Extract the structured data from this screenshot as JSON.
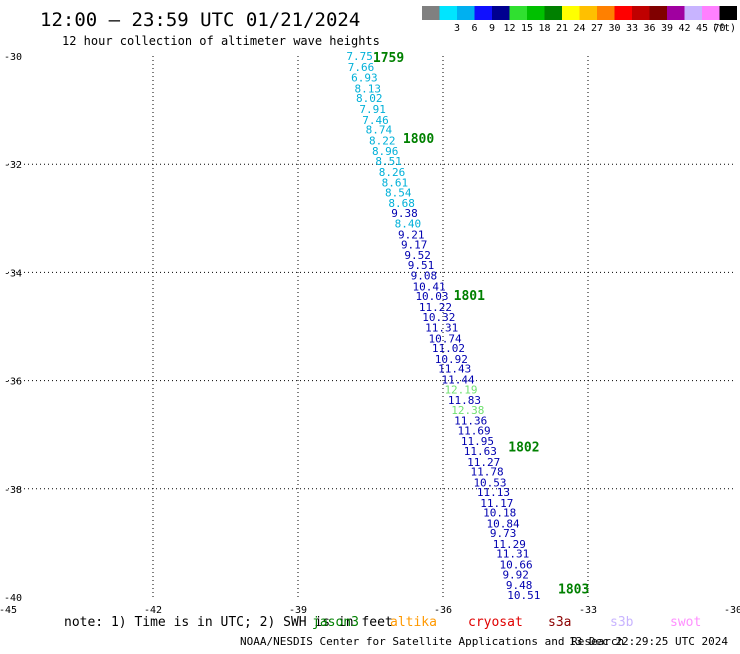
{
  "header": {
    "title": "12:00 – 23:59 UTC 01/21/2024",
    "subtitle": "12 hour collection of altimeter wave heights"
  },
  "legend": {
    "unit": "(ft)",
    "swatches": [
      {
        "color": "#808080",
        "label": ""
      },
      {
        "color": "#00e5ff",
        "label": "3"
      },
      {
        "color": "#00b0f0",
        "label": "6"
      },
      {
        "color": "#1010ff",
        "label": "9"
      },
      {
        "color": "#000090",
        "label": "12"
      },
      {
        "color": "#30e030",
        "label": "15"
      },
      {
        "color": "#00c000",
        "label": "18"
      },
      {
        "color": "#008000",
        "label": "21"
      },
      {
        "color": "#ffff00",
        "label": "24"
      },
      {
        "color": "#ffc000",
        "label": "27"
      },
      {
        "color": "#ff8000",
        "label": "30"
      },
      {
        "color": "#ff0000",
        "label": "33"
      },
      {
        "color": "#c00000",
        "label": "36"
      },
      {
        "color": "#800000",
        "label": "39"
      },
      {
        "color": "#a000a0",
        "label": "42"
      },
      {
        "color": "#c8b4ff",
        "label": "45"
      },
      {
        "color": "#ff80ff",
        "label": "70"
      },
      {
        "color": "#000000",
        "label": ""
      }
    ]
  },
  "map": {
    "lon_range": [
      -45,
      -30
    ],
    "lat_range": [
      -40,
      -30
    ],
    "lon_ticks": [
      {
        "value": -45,
        "label": "-45"
      },
      {
        "value": -42,
        "label": "-42"
      },
      {
        "value": -39,
        "label": "-39"
      },
      {
        "value": -36,
        "label": "-36"
      },
      {
        "value": -33,
        "label": "-33"
      },
      {
        "value": -30,
        "label": "-30"
      }
    ],
    "lat_ticks": [
      {
        "value": -30,
        "label": "-30"
      },
      {
        "value": -32,
        "label": "-32"
      },
      {
        "value": -34,
        "label": "-34"
      },
      {
        "value": -36,
        "label": "-36"
      },
      {
        "value": -38,
        "label": "-38"
      },
      {
        "value": -40,
        "label": "-40"
      }
    ],
    "colors": {
      "cyan": "#00b0d8",
      "blue": "#0000b0",
      "light_green": "#70e070",
      "time": "#008000"
    },
    "track": [
      {
        "lon": -38.0,
        "lat": -30.0,
        "v": "7.75",
        "c": "cyan"
      },
      {
        "lon": -37.97,
        "lat": -30.2,
        "v": "7.66",
        "c": "cyan"
      },
      {
        "lon": -37.9,
        "lat": -30.4,
        "v": "6.93",
        "c": "cyan"
      },
      {
        "lon": -37.83,
        "lat": -30.6,
        "v": "8.13",
        "c": "cyan"
      },
      {
        "lon": -37.8,
        "lat": -30.78,
        "v": "8.02",
        "c": "cyan"
      },
      {
        "lon": -37.73,
        "lat": -30.98,
        "v": "7.91",
        "c": "cyan"
      },
      {
        "lon": -37.67,
        "lat": -31.18,
        "v": "7.46",
        "c": "cyan"
      },
      {
        "lon": -37.6,
        "lat": -31.36,
        "v": "8.74",
        "c": "cyan"
      },
      {
        "lon": -37.53,
        "lat": -31.56,
        "v": "8.22",
        "c": "cyan"
      },
      {
        "lon": -37.47,
        "lat": -31.76,
        "v": "8.96",
        "c": "cyan"
      },
      {
        "lon": -37.4,
        "lat": -31.94,
        "v": "8.51",
        "c": "cyan"
      },
      {
        "lon": -37.33,
        "lat": -32.14,
        "v": "8.26",
        "c": "cyan"
      },
      {
        "lon": -37.27,
        "lat": -32.34,
        "v": "8.61",
        "c": "cyan"
      },
      {
        "lon": -37.2,
        "lat": -32.52,
        "v": "8.54",
        "c": "cyan"
      },
      {
        "lon": -37.13,
        "lat": -32.72,
        "v": "8.68",
        "c": "cyan"
      },
      {
        "lon": -37.07,
        "lat": -32.9,
        "v": "9.38",
        "c": "blue"
      },
      {
        "lon": -37.0,
        "lat": -33.1,
        "v": "8.40",
        "c": "cyan"
      },
      {
        "lon": -36.93,
        "lat": -33.3,
        "v": "9.21",
        "c": "blue"
      },
      {
        "lon": -36.87,
        "lat": -33.48,
        "v": "9.17",
        "c": "blue"
      },
      {
        "lon": -36.8,
        "lat": -33.68,
        "v": "9.52",
        "c": "blue"
      },
      {
        "lon": -36.73,
        "lat": -33.86,
        "v": "9.51",
        "c": "blue"
      },
      {
        "lon": -36.67,
        "lat": -34.06,
        "v": "9.08",
        "c": "blue"
      },
      {
        "lon": -36.63,
        "lat": -34.26,
        "v": "10.41",
        "c": "blue"
      },
      {
        "lon": -36.57,
        "lat": -34.44,
        "v": "10.03",
        "c": "blue"
      },
      {
        "lon": -36.5,
        "lat": -34.64,
        "v": "11.22",
        "c": "blue"
      },
      {
        "lon": -36.43,
        "lat": -34.82,
        "v": "10.32",
        "c": "blue"
      },
      {
        "lon": -36.37,
        "lat": -35.02,
        "v": "11.31",
        "c": "blue"
      },
      {
        "lon": -36.3,
        "lat": -35.22,
        "v": "10.74",
        "c": "blue"
      },
      {
        "lon": -36.23,
        "lat": -35.4,
        "v": "11.02",
        "c": "blue"
      },
      {
        "lon": -36.17,
        "lat": -35.6,
        "v": "10.92",
        "c": "blue"
      },
      {
        "lon": -36.1,
        "lat": -35.78,
        "v": "11.43",
        "c": "blue"
      },
      {
        "lon": -36.03,
        "lat": -35.98,
        "v": "11.44",
        "c": "blue"
      },
      {
        "lon": -35.97,
        "lat": -36.16,
        "v": "12.19",
        "c": "light_green"
      },
      {
        "lon": -35.9,
        "lat": -36.36,
        "v": "11.83",
        "c": "blue"
      },
      {
        "lon": -35.83,
        "lat": -36.54,
        "v": "12.38",
        "c": "light_green"
      },
      {
        "lon": -35.77,
        "lat": -36.74,
        "v": "11.36",
        "c": "blue"
      },
      {
        "lon": -35.7,
        "lat": -36.92,
        "v": "11.69",
        "c": "blue"
      },
      {
        "lon": -35.63,
        "lat": -37.12,
        "v": "11.95",
        "c": "blue"
      },
      {
        "lon": -35.57,
        "lat": -37.3,
        "v": "11.63",
        "c": "blue"
      },
      {
        "lon": -35.5,
        "lat": -37.5,
        "v": "11.27",
        "c": "blue"
      },
      {
        "lon": -35.43,
        "lat": -37.68,
        "v": "11.78",
        "c": "blue"
      },
      {
        "lon": -35.37,
        "lat": -37.88,
        "v": "10.53",
        "c": "blue"
      },
      {
        "lon": -35.3,
        "lat": -38.06,
        "v": "11.13",
        "c": "blue"
      },
      {
        "lon": -35.23,
        "lat": -38.26,
        "v": "11.17",
        "c": "blue"
      },
      {
        "lon": -35.17,
        "lat": -38.44,
        "v": "10.18",
        "c": "blue"
      },
      {
        "lon": -35.1,
        "lat": -38.64,
        "v": "10.84",
        "c": "blue"
      },
      {
        "lon": -35.03,
        "lat": -38.82,
        "v": "9.73",
        "c": "blue"
      },
      {
        "lon": -34.97,
        "lat": -39.02,
        "v": "11.29",
        "c": "blue"
      },
      {
        "lon": -34.9,
        "lat": -39.2,
        "v": "11.31",
        "c": "blue"
      },
      {
        "lon": -34.83,
        "lat": -39.4,
        "v": "10.66",
        "c": "blue"
      },
      {
        "lon": -34.77,
        "lat": -39.58,
        "v": "9.92",
        "c": "blue"
      },
      {
        "lon": -34.7,
        "lat": -39.78,
        "v": "9.48",
        "c": "blue"
      },
      {
        "lon": -34.67,
        "lat": -39.96,
        "v": "10.51",
        "c": "blue"
      }
    ],
    "times": [
      {
        "lon": -37.45,
        "lat": -30.0,
        "label": "1759"
      },
      {
        "lon": -36.83,
        "lat": -31.5,
        "label": "1800"
      },
      {
        "lon": -35.78,
        "lat": -34.4,
        "label": "1801"
      },
      {
        "lon": -34.65,
        "lat": -37.2,
        "label": "1802"
      },
      {
        "lon": -33.62,
        "lat": -39.82,
        "label": "1803"
      }
    ]
  },
  "footer": {
    "note": "note:  1) Time is in UTC; 2) SWH is in feet",
    "satellites": [
      {
        "name": "jason3",
        "color": "#008000"
      },
      {
        "name": "altika",
        "color": "#ff9900"
      },
      {
        "name": "cryosat",
        "color": "#e00000"
      },
      {
        "name": "s3a",
        "color": "#8b0000"
      },
      {
        "name": "s3b",
        "color": "#c8b4ff"
      },
      {
        "name": "swot",
        "color": "#ff90ff"
      }
    ],
    "credit": "NOAA/NESDIS Center for Satellite Applications and Research",
    "timestamp": "13 Dec 22:29:25 UTC 2024"
  }
}
